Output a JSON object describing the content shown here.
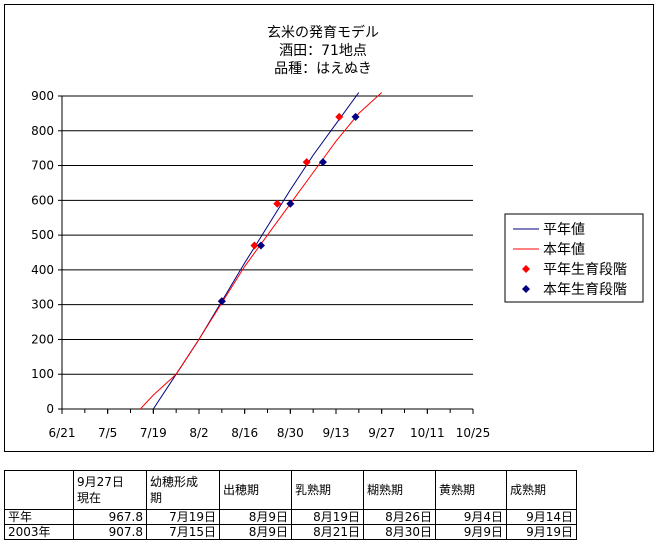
{
  "chart_data": {
    "type": "line",
    "title": [
      "玄米の発育モデル",
      "酒田：71地点",
      "品種：はえぬき"
    ],
    "x_ticks": [
      "6/21",
      "7/5",
      "7/19",
      "8/2",
      "8/16",
      "8/30",
      "9/13",
      "9/27",
      "10/11",
      "10/25"
    ],
    "y_ticks": [
      "0",
      "100",
      "200",
      "300",
      "400",
      "500",
      "600",
      "700",
      "800",
      "900"
    ],
    "ylim": [
      0,
      900
    ],
    "x_range": [
      "6/21",
      "10/25"
    ],
    "grid": "horizontal",
    "legend_position": "right",
    "series": [
      {
        "name": "平年値",
        "kind": "line",
        "color": "#000080",
        "points": [
          [
            "7/19",
            0
          ],
          [
            "7/26",
            100
          ],
          [
            "8/2",
            200
          ],
          [
            "8/9",
            310
          ],
          [
            "8/16",
            420
          ],
          [
            "8/23",
            525
          ],
          [
            "8/30",
            630
          ],
          [
            "9/6",
            730
          ],
          [
            "9/13",
            820
          ],
          [
            "9/20",
            910
          ]
        ]
      },
      {
        "name": "本年値",
        "kind": "line",
        "color": "#ff0000",
        "points": [
          [
            "7/15",
            0
          ],
          [
            "7/19",
            40
          ],
          [
            "7/26",
            100
          ],
          [
            "8/2",
            200
          ],
          [
            "8/9",
            305
          ],
          [
            "8/16",
            410
          ],
          [
            "8/23",
            500
          ],
          [
            "8/30",
            590
          ],
          [
            "9/6",
            680
          ],
          [
            "9/13",
            770
          ],
          [
            "9/20",
            850
          ],
          [
            "9/27",
            910
          ]
        ]
      },
      {
        "name": "平年生育段階",
        "kind": "marker",
        "color": "#ff0000",
        "points": [
          [
            "8/9",
            310
          ],
          [
            "8/19",
            470
          ],
          [
            "8/26",
            590
          ],
          [
            "9/4",
            710
          ],
          [
            "9/14",
            840
          ]
        ]
      },
      {
        "name": "本年生育段階",
        "kind": "marker",
        "color": "#000080",
        "points": [
          [
            "8/9",
            310
          ],
          [
            "8/21",
            470
          ],
          [
            "8/30",
            590
          ],
          [
            "9/9",
            710
          ],
          [
            "9/19",
            840
          ]
        ]
      }
    ]
  },
  "table": {
    "header": [
      "",
      "9月27日\n現在",
      "幼穂形成\n期",
      "出穂期",
      "乳熟期",
      "糊熟期",
      "黄熟期",
      "成熟期"
    ],
    "rows": [
      [
        "平年",
        "967.8",
        "7月19日",
        "8月9日",
        "8月19日",
        "8月26日",
        "9月4日",
        "9月14日"
      ],
      [
        "2003年",
        "907.8",
        "7月15日",
        "8月9日",
        "8月21日",
        "8月30日",
        "9月9日",
        "9月19日"
      ]
    ]
  }
}
